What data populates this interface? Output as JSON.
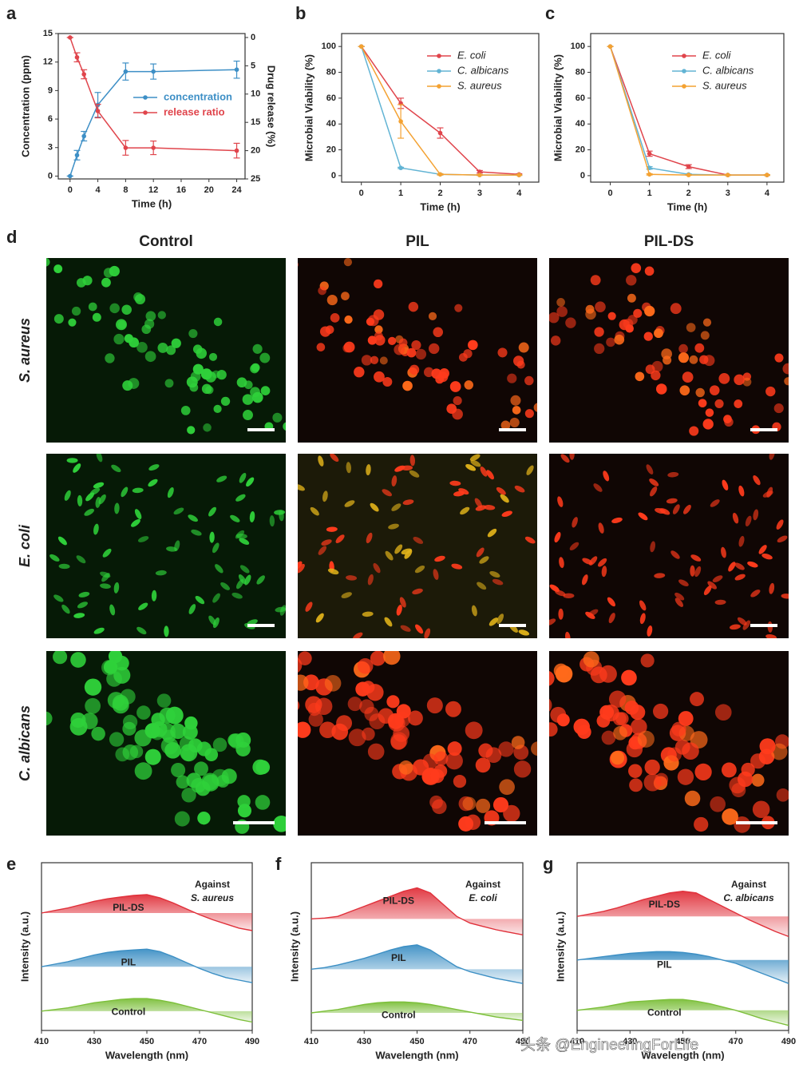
{
  "chart_data": [
    {
      "type": "line",
      "xlabel": "Time (h)",
      "ylabel": "Concentration (ppm)",
      "y2label": "Drug release (%)",
      "x": [
        0,
        1,
        2,
        4,
        8,
        12,
        24
      ],
      "xlim": [
        -1.7,
        25.2
      ],
      "xticks": [
        0,
        4,
        8,
        12,
        16,
        20,
        24
      ],
      "ylim": [
        -0.3,
        15
      ],
      "yticks": [
        0,
        3,
        6,
        9,
        12,
        15
      ],
      "y2lim": [
        25,
        -0.7
      ],
      "y2ticks": [
        0,
        5,
        10,
        15,
        20,
        25
      ],
      "legend": "center right",
      "legend_style": "colored",
      "series": [
        {
          "name": "concentration",
          "color": "#3d8fc6",
          "values": [
            0,
            2.2,
            4.2,
            7.5,
            11,
            11,
            11.2
          ],
          "errors": [
            0,
            0.5,
            0.5,
            1.3,
            0.9,
            0.8,
            0.9
          ]
        },
        {
          "name": "release ratio",
          "color": "#e0454c",
          "axis": "y2",
          "values": [
            0,
            3.5,
            6.5,
            13,
            19.5,
            19.5,
            20
          ],
          "errors": [
            0,
            0.8,
            0.8,
            1.2,
            1.3,
            1.2,
            1.3
          ]
        }
      ]
    },
    {
      "type": "line",
      "xlabel": "Time (h)",
      "ylabel": "Microbial Viability (%)",
      "x": [
        0,
        1,
        2,
        3,
        4
      ],
      "xlim": [
        -0.5,
        4.5
      ],
      "xticks": [
        0,
        1,
        2,
        3,
        4
      ],
      "ylim": [
        -5,
        110
      ],
      "yticks": [
        0,
        20,
        40,
        60,
        80,
        100
      ],
      "legend": "top right",
      "legend_style": "italic",
      "series": [
        {
          "name": "E. coli",
          "color": "#e0454c",
          "values": [
            100,
            56,
            33,
            3,
            1
          ],
          "errors": [
            0,
            4,
            4,
            1,
            0.5
          ]
        },
        {
          "name": "C. albicans",
          "color": "#62b4d4",
          "values": [
            100,
            6,
            1,
            0.5,
            0.5
          ],
          "errors": [
            0,
            0.5,
            0.5,
            0.3,
            0.3
          ]
        },
        {
          "name": "S. aureus",
          "color": "#f4a232",
          "values": [
            100,
            42,
            1,
            0.5,
            0.5
          ],
          "errors": [
            0,
            13,
            0.5,
            0.3,
            0.3
          ]
        }
      ]
    },
    {
      "type": "line",
      "xlabel": "Time (h)",
      "ylabel": "Microbial Viability (%)",
      "x": [
        0,
        1,
        2,
        3,
        4
      ],
      "xlim": [
        -0.5,
        4.43
      ],
      "xticks": [
        0,
        1,
        2,
        3,
        4
      ],
      "ylim": [
        -5,
        110
      ],
      "yticks": [
        0,
        20,
        40,
        60,
        80,
        100
      ],
      "legend": "top right",
      "legend_style": "italic",
      "series": [
        {
          "name": "E. coli",
          "color": "#e0454c",
          "values": [
            100,
            17,
            7,
            0.5,
            0.5
          ],
          "errors": [
            0,
            2,
            1.5,
            0.3,
            0.3
          ]
        },
        {
          "name": "C. albicans",
          "color": "#62b4d4",
          "values": [
            100,
            6,
            1,
            0.5,
            0.5
          ],
          "errors": [
            0,
            1,
            0.5,
            0.3,
            0.3
          ]
        },
        {
          "name": "S. aureus",
          "color": "#f4a232",
          "values": [
            100,
            1,
            0.5,
            0.5,
            0.5
          ],
          "errors": [
            0,
            0.5,
            0.3,
            0.3,
            0.3
          ]
        }
      ]
    },
    {
      "type": "area",
      "xlabel": "Wavelength (nm)",
      "ylabel": "Intensity (a.u.)",
      "annotation": [
        "Against",
        "S. aureus"
      ],
      "x": [
        410,
        415,
        420,
        425,
        430,
        435,
        440,
        445,
        450,
        455,
        460,
        465,
        470,
        475,
        480,
        485,
        490
      ],
      "xlim": [
        410,
        490
      ],
      "xticks": [
        410,
        430,
        450,
        470,
        490
      ],
      "ylim": [
        0,
        100
      ],
      "series": [
        {
          "name": "PIL-DS",
          "color": "#e0303a",
          "values": [
            70,
            71.5,
            73,
            75,
            77,
            78.5,
            79.5,
            80.5,
            81,
            79,
            76,
            72.5,
            69,
            66,
            63.5,
            61,
            59.5
          ]
        },
        {
          "name": "PIL",
          "color": "#3c8fc4",
          "values": [
            38,
            39.5,
            41,
            43,
            45,
            46.5,
            47.5,
            48,
            48.5,
            47,
            44,
            40.5,
            37,
            34,
            31.5,
            30,
            28.5
          ]
        },
        {
          "name": "Control",
          "color": "#7cbf3a",
          "values": [
            11.5,
            12.5,
            13.5,
            15,
            16.5,
            17.5,
            18.5,
            19,
            19,
            18,
            16.5,
            14.5,
            12.5,
            10.5,
            8.5,
            6.5,
            5
          ]
        }
      ]
    },
    {
      "type": "area",
      "xlabel": "Wavelength (nm)",
      "ylabel": "Intensity (a.u.)",
      "annotation": [
        "Against",
        "E. coli"
      ],
      "x": [
        410,
        415,
        420,
        425,
        430,
        435,
        440,
        445,
        450,
        455,
        460,
        465,
        470,
        475,
        480,
        485,
        490
      ],
      "xlim": [
        410,
        490
      ],
      "xticks": [
        410,
        430,
        450,
        470,
        490
      ],
      "ylim": [
        0,
        100
      ],
      "series": [
        {
          "name": "PIL-DS",
          "color": "#e0303a",
          "values": [
            66.5,
            67,
            68,
            71,
            74,
            77,
            80,
            83,
            85,
            82,
            75,
            68,
            64,
            62,
            60,
            58.5,
            57
          ]
        },
        {
          "name": "PIL",
          "color": "#3c8fc4",
          "values": [
            36.5,
            37.5,
            39,
            41,
            43,
            45.5,
            48,
            50,
            51,
            48,
            43,
            38,
            35,
            33,
            31,
            29.5,
            28
          ]
        },
        {
          "name": "Control",
          "color": "#7cbf3a",
          "values": [
            10.5,
            11.5,
            12.5,
            14,
            15.5,
            16.5,
            17,
            17,
            16.5,
            15.5,
            14,
            12.5,
            11,
            9.5,
            8,
            7,
            6
          ]
        }
      ]
    },
    {
      "type": "area",
      "xlabel": "Wavelength (nm)",
      "ylabel": "Intensity (a.u.)",
      "annotation": [
        "Against",
        "C. albicans"
      ],
      "x": [
        410,
        415,
        420,
        425,
        430,
        435,
        440,
        445,
        450,
        455,
        460,
        465,
        470,
        475,
        480,
        485,
        490
      ],
      "xlim": [
        410,
        490
      ],
      "xticks": [
        410,
        430,
        450,
        470,
        490
      ],
      "ylim": [
        0,
        100
      ],
      "series": [
        {
          "name": "PIL-DS",
          "color": "#e0303a",
          "values": [
            68,
            69.5,
            71,
            73,
            75.5,
            78,
            80,
            82,
            83,
            82,
            78,
            74,
            70,
            66,
            62.5,
            59,
            56
          ]
        },
        {
          "name": "PIL",
          "color": "#3c8fc4",
          "values": [
            42,
            43,
            44,
            45,
            46,
            46.5,
            47,
            47,
            46.5,
            45.5,
            44,
            42,
            40,
            37,
            34,
            31,
            28
          ]
        },
        {
          "name": "Control",
          "color": "#7cbf3a",
          "values": [
            12,
            13,
            14,
            15.5,
            17,
            17.5,
            18,
            18.5,
            18.5,
            17.5,
            16,
            14,
            12,
            9.5,
            7,
            5,
            3
          ]
        }
      ]
    }
  ],
  "panel_labels": [
    "a",
    "b",
    "c",
    "d",
    "e",
    "f",
    "g"
  ],
  "microscopy": {
    "columns": [
      "Control",
      "PIL",
      "PIL-DS"
    ],
    "rows": [
      "S. aureus",
      "E. coli",
      "C. albicans"
    ]
  },
  "watermark": "头条 @EngineeringForLife"
}
